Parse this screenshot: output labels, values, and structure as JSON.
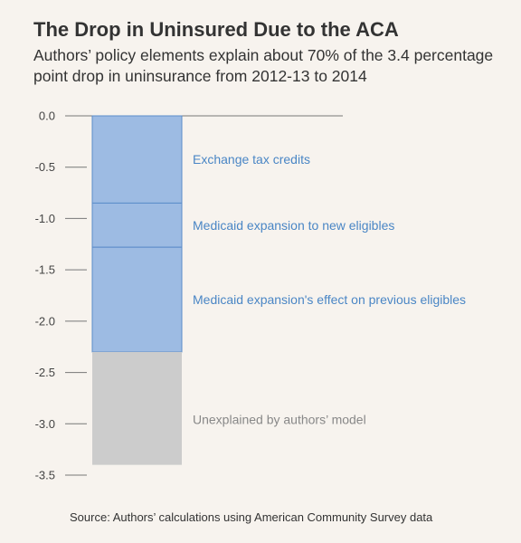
{
  "header": {
    "title": "The Drop in Uninsured Due to the ACA",
    "subtitle": "Authors’ policy elements explain about 70% of the 3.4 percentage point drop in uninsurance from 2012-13 to 2014"
  },
  "footer": {
    "source": "Source: Authors’ calculations using American Community Survey data"
  },
  "colors": {
    "explained": "#9dbbe3",
    "explained_border": "#5b8cc9",
    "explained_label": "#4a86c5",
    "unexplained": "#cccccc",
    "unexplained_label": "#888888",
    "axis": "#777777"
  },
  "chart_data": {
    "type": "bar",
    "stacked": true,
    "ylim": [
      -3.5,
      0.0
    ],
    "yticks": [
      "0.0",
      "-0.5",
      "-1.0",
      "-1.5",
      "-2.0",
      "-2.5",
      "-3.0",
      "-3.5"
    ],
    "ytick_values": [
      0.0,
      -0.5,
      -1.0,
      -1.5,
      -2.0,
      -2.5,
      -3.0,
      -3.5
    ],
    "segments": [
      {
        "name": "Exchange tax credits",
        "start": 0.0,
        "end": -0.85,
        "group": "explained"
      },
      {
        "name": "Medicaid expansion to new eligibles",
        "start": -0.85,
        "end": -1.28,
        "group": "explained"
      },
      {
        "name": "Medicaid expansion's effect on previous eligibles",
        "start": -1.28,
        "end": -2.3,
        "group": "explained"
      },
      {
        "name": "Unexplained by authors’ model",
        "start": -2.3,
        "end": -3.4,
        "group": "unexplained"
      }
    ]
  }
}
